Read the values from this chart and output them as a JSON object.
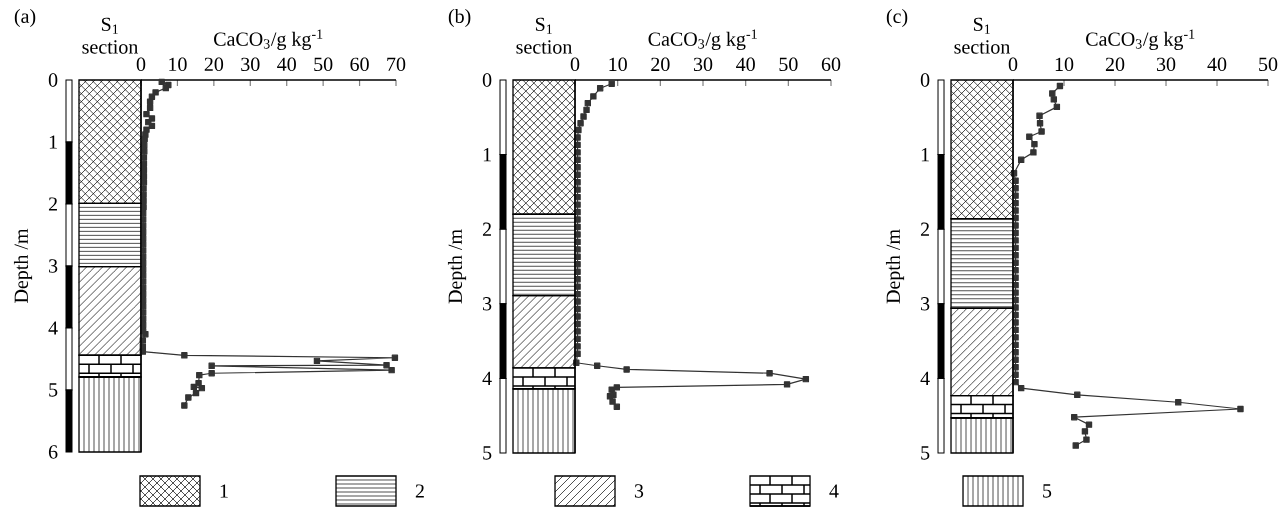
{
  "chart_data": [
    {
      "type": "line",
      "title": "(a)",
      "xlabel": "CaCO$_{3}$/g kg$^{-1}$",
      "ylabel": "Depth /m",
      "annotations": [
        "S$_{1}$ section"
      ],
      "series": [
        {
          "color": "#333333",
          "x": [
            5.7,
            7.5,
            6.8,
            4,
            3,
            2.5,
            2.5,
            1.5,
            3,
            2,
            3,
            1.5,
            1.2,
            1,
            0.9,
            0.9,
            0.8,
            0.8,
            0.8,
            0.8,
            0.8,
            0.7,
            0.7,
            0.7,
            0.7,
            0.6,
            0.6,
            0.6,
            0.6,
            0.6,
            0.6,
            0.6,
            0.6,
            0.6,
            0.6,
            0.6,
            0.6,
            0.6,
            0.6,
            0.6,
            0.6,
            0.6,
            0.6,
            0.6,
            0.6,
            1.2,
            0.5,
            0.5,
            0.5,
            11.9,
            69.7,
            48.3,
            67.4,
            19.4,
            68.8,
            19.4,
            16,
            15.8,
            14.5,
            16.7,
            15.1,
            13,
            11.9
          ],
          "values": [
            0.03,
            0.08,
            0.13,
            0.2,
            0.27,
            0.35,
            0.45,
            0.55,
            0.62,
            0.68,
            0.74,
            0.8,
            0.88,
            0.95,
            1.05,
            1.15,
            1.25,
            1.35,
            1.45,
            1.55,
            1.65,
            1.75,
            1.85,
            1.95,
            2.05,
            2.15,
            2.25,
            2.35,
            2.45,
            2.55,
            2.65,
            2.75,
            2.85,
            2.95,
            3.05,
            3.15,
            3.25,
            3.35,
            3.45,
            3.55,
            3.65,
            3.75,
            3.85,
            3.95,
            4.05,
            4.1,
            4.2,
            4.3,
            4.38,
            4.44,
            4.48,
            4.53,
            4.6,
            4.61,
            4.68,
            4.73,
            4.76,
            4.89,
            4.95,
            4.97,
            5.05,
            5.12,
            5.25
          ]
        }
      ],
      "xlim": [
        0,
        70
      ],
      "xticks": [
        0,
        10,
        20,
        30,
        40,
        50,
        60,
        70
      ],
      "ylim": [
        6,
        0
      ],
      "yticks": [
        0,
        1,
        2,
        3,
        4,
        5,
        6
      ],
      "marker": "square",
      "line_style": "solid"
    },
    {
      "type": "line",
      "title": "(b)",
      "xlabel": "CaCO$_{3}$/g kg$^{-1}$",
      "ylabel": "Depth /m",
      "annotations": [
        "S$_{1}$ section"
      ],
      "series": [
        {
          "color": "#333333",
          "x": [
            8.6,
            5.9,
            4.3,
            3,
            2.7,
            2,
            1.3,
            0.8,
            0.6,
            0.6,
            0.6,
            0.6,
            0.6,
            0.6,
            0.6,
            0.6,
            0.6,
            0.6,
            0.6,
            0.6,
            0.6,
            0.6,
            0.6,
            0.6,
            0.6,
            0.6,
            0.6,
            0.6,
            0.6,
            0.6,
            0.6,
            0.6,
            0.6,
            0.6,
            0.6,
            0.6,
            0.6,
            0.6,
            0.3,
            5.2,
            12.1,
            45.6,
            54.1,
            49.7,
            9.8,
            8.6,
            9,
            8.2,
            8.8,
            9.8
          ],
          "values": [
            0.05,
            0.11,
            0.22,
            0.31,
            0.4,
            0.49,
            0.58,
            0.67,
            0.77,
            0.87,
            0.97,
            1.07,
            1.17,
            1.27,
            1.37,
            1.47,
            1.57,
            1.67,
            1.77,
            1.87,
            1.97,
            2.07,
            2.17,
            2.27,
            2.37,
            2.47,
            2.57,
            2.67,
            2.77,
            2.87,
            2.97,
            3.07,
            3.17,
            3.27,
            3.37,
            3.47,
            3.57,
            3.67,
            3.79,
            3.83,
            3.88,
            3.93,
            4.01,
            4.08,
            4.12,
            4.15,
            4.22,
            4.24,
            4.31,
            4.38
          ]
        }
      ],
      "xlim": [
        0,
        60
      ],
      "xticks": [
        0,
        10,
        20,
        30,
        40,
        50,
        60
      ],
      "ylim": [
        5,
        0
      ],
      "yticks": [
        0,
        1,
        2,
        3,
        4,
        5
      ],
      "marker": "square",
      "line_style": "solid"
    },
    {
      "type": "line",
      "title": "(c)",
      "xlabel": "CaCO$_{3}$/g kg$^{-1}$",
      "ylabel": "Depth /m",
      "annotations": [
        "S$_{1}$ section"
      ],
      "series": [
        {
          "color": "#333333",
          "x": [
            9.2,
            7.7,
            8,
            8.6,
            5.2,
            5.3,
            5.6,
            3.2,
            4.2,
            4,
            1.6,
            0.2,
            0.5,
            0.5,
            0.5,
            0.5,
            0.5,
            0.5,
            0.5,
            0.5,
            0.5,
            0.5,
            0.5,
            0.5,
            0.5,
            0.5,
            0.5,
            0.5,
            0.5,
            0.5,
            0.5,
            0.5,
            0.5,
            0.5,
            0.5,
            0.5,
            0.5,
            0.5,
            0.5,
            0.5,
            1.6,
            12.6,
            32.4,
            44.6,
            12,
            14.9,
            14.1,
            14.4,
            12.3
          ],
          "values": [
            0.08,
            0.18,
            0.26,
            0.36,
            0.48,
            0.58,
            0.69,
            0.76,
            0.86,
            0.97,
            1.07,
            1.25,
            1.35,
            1.45,
            1.55,
            1.65,
            1.75,
            1.85,
            1.95,
            2.05,
            2.15,
            2.25,
            2.35,
            2.45,
            2.55,
            2.65,
            2.75,
            2.85,
            2.95,
            3.05,
            3.15,
            3.25,
            3.35,
            3.45,
            3.55,
            3.65,
            3.75,
            3.85,
            3.95,
            4.05,
            4.13,
            4.22,
            4.32,
            4.41,
            4.52,
            4.62,
            4.71,
            4.82,
            4.9
          ]
        }
      ],
      "xlim": [
        0,
        50
      ],
      "xticks": [
        0,
        10,
        20,
        30,
        40,
        50
      ],
      "ylim": [
        5,
        0
      ],
      "yticks": [
        0,
        1,
        2,
        3,
        4,
        5
      ],
      "marker": "square",
      "line_style": "solid"
    },
    {
      "type": "other",
      "annotations": [
        "1",
        "2",
        "3",
        "4",
        "5"
      ]
    }
  ]
}
